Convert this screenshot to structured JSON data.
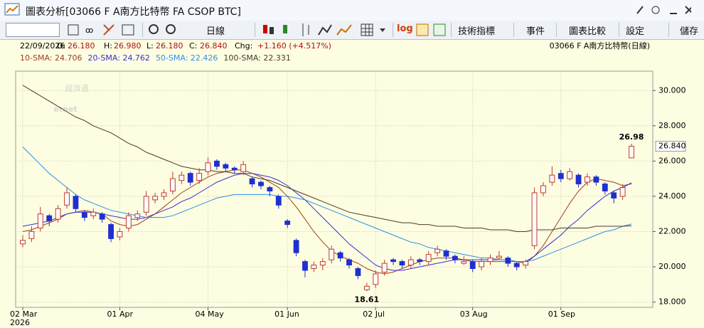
{
  "window_title": "圖表分析[03066 F A南方比特幣 FA CSOP BTC]",
  "toolbar": {
    "period": "日線",
    "log": "log",
    "indicators": "技術指標",
    "events": "事件",
    "compare": "圖表比較",
    "settings": "設定",
    "save": "儲存"
  },
  "watermark": {
    "cn": "經濟通",
    "en": "etnet"
  },
  "chart_data": {
    "type": "candlestick",
    "info": {
      "date": "22/09/2026",
      "o_label": "O:",
      "o": "26.180",
      "h_label": "H:",
      "h": "26.980",
      "l_label": "L:",
      "l": "26.180",
      "c_label": "C:",
      "c": "26.840",
      "chg_label": "Chg:",
      "chg": "+1.160 (+4.517%)",
      "symbol": "03066  F A南方比特幣(日線)"
    },
    "categories": [
      "02 Mar",
      null,
      null,
      null,
      null,
      null,
      null,
      null,
      null,
      null,
      null,
      "01 Apr",
      null,
      null,
      null,
      null,
      null,
      null,
      null,
      null,
      null,
      "04 May",
      null,
      null,
      null,
      null,
      null,
      null,
      null,
      null,
      "01 Jun",
      null,
      null,
      null,
      null,
      null,
      null,
      null,
      null,
      null,
      "02 Jul",
      null,
      null,
      null,
      null,
      null,
      null,
      null,
      null,
      null,
      null,
      "03 Aug",
      null,
      null,
      null,
      null,
      null,
      null,
      null,
      null,
      null,
      "01 Sep",
      null,
      null,
      null,
      null,
      null,
      null,
      null,
      null
    ],
    "year_label": "2026",
    "open": [
      21.3,
      21.6,
      22.2,
      22.9,
      22.7,
      23.5,
      24.0,
      23.1,
      22.9,
      23.0,
      22.4,
      21.7,
      22.2,
      22.8,
      23.1,
      23.8,
      24.0,
      24.3,
      24.9,
      25.3,
      24.9,
      25.4,
      26.0,
      25.8,
      25.6,
      25.4,
      25.0,
      24.8,
      24.5,
      24.0,
      22.6,
      21.5,
      20.3,
      19.9,
      20.1,
      20.4,
      20.8,
      20.4,
      19.9,
      18.7,
      19.0,
      19.7,
      20.4,
      20.3,
      20.1,
      20.4,
      20.3,
      20.8,
      20.9,
      20.6,
      20.2,
      20.3,
      20.0,
      20.3,
      20.5,
      20.5,
      20.2,
      20.1,
      21.2,
      24.2,
      24.8,
      25.3,
      25.0,
      25.2,
      24.8,
      25.1,
      24.7,
      24.2,
      24.0,
      26.18
    ],
    "high": [
      21.8,
      22.3,
      23.4,
      23.0,
      23.5,
      24.5,
      24.1,
      23.2,
      23.3,
      23.1,
      22.5,
      22.2,
      23.1,
      23.2,
      24.3,
      24.2,
      24.4,
      25.4,
      25.4,
      25.4,
      25.6,
      26.2,
      26.1,
      25.9,
      25.7,
      26.0,
      25.1,
      24.9,
      24.6,
      24.1,
      22.7,
      21.6,
      20.4,
      20.3,
      20.5,
      21.2,
      20.9,
      20.5,
      20.0,
      19.1,
      19.8,
      20.4,
      20.5,
      20.4,
      20.6,
      20.5,
      20.9,
      21.2,
      21.0,
      20.7,
      20.6,
      20.4,
      20.5,
      20.7,
      20.9,
      20.6,
      20.3,
      20.4,
      24.5,
      24.8,
      25.7,
      25.5,
      25.6,
      25.3,
      25.3,
      25.2,
      24.8,
      24.3,
      24.7,
      26.98
    ],
    "low": [
      21.1,
      21.4,
      22.0,
      22.3,
      22.5,
      23.3,
      23.1,
      22.6,
      22.7,
      22.5,
      21.4,
      21.5,
      22.0,
      22.6,
      22.9,
      23.6,
      23.8,
      24.1,
      24.7,
      24.6,
      24.7,
      25.2,
      25.5,
      25.4,
      25.3,
      25.2,
      24.5,
      24.4,
      24.0,
      23.3,
      22.2,
      20.6,
      19.4,
      19.7,
      19.8,
      20.2,
      20.3,
      19.9,
      19.3,
      18.61,
      18.8,
      19.5,
      20.1,
      19.9,
      19.9,
      20.1,
      20.1,
      20.6,
      20.4,
      20.2,
      20.1,
      19.7,
      19.8,
      20.1,
      20.4,
      20.0,
      19.8,
      19.9,
      21.0,
      24.0,
      24.6,
      24.8,
      24.9,
      24.5,
      24.6,
      24.6,
      24.1,
      23.6,
      23.8,
      26.18
    ],
    "close": [
      21.5,
      22.0,
      23.0,
      22.6,
      23.3,
      24.2,
      23.3,
      22.8,
      23.1,
      22.7,
      21.6,
      22.0,
      22.9,
      23.0,
      24.0,
      24.0,
      24.2,
      25.0,
      25.2,
      24.8,
      25.3,
      25.9,
      25.7,
      25.6,
      25.5,
      25.8,
      24.7,
      24.6,
      24.3,
      23.5,
      22.4,
      20.8,
      19.8,
      20.1,
      20.3,
      21.0,
      20.5,
      20.1,
      19.5,
      18.9,
      19.6,
      20.2,
      20.3,
      20.1,
      20.4,
      20.3,
      20.7,
      21.0,
      20.6,
      20.4,
      20.3,
      19.9,
      20.3,
      20.5,
      20.6,
      20.2,
      20.0,
      20.3,
      24.2,
      24.6,
      25.2,
      25.0,
      25.4,
      24.7,
      25.1,
      24.8,
      24.3,
      23.9,
      24.5,
      26.84
    ],
    "up_color": "#c0392b",
    "down_color": "#1f2fd0",
    "series": [
      {
        "name": "10-SMA: 24.706",
        "color": "#a0401c",
        "values": [
          22.0,
          22.1,
          22.3,
          22.5,
          22.7,
          23.0,
          23.1,
          23.2,
          23.1,
          23.0,
          22.6,
          22.4,
          22.3,
          22.4,
          22.7,
          23.0,
          23.4,
          23.8,
          24.2,
          24.5,
          24.8,
          25.1,
          25.3,
          25.4,
          25.5,
          25.5,
          25.3,
          25.1,
          24.8,
          24.5,
          24.0,
          23.4,
          22.7,
          22.0,
          21.4,
          20.9,
          20.6,
          20.4,
          20.2,
          19.9,
          19.7,
          19.6,
          19.7,
          19.9,
          20.1,
          20.3,
          20.4,
          20.5,
          20.5,
          20.5,
          20.4,
          20.3,
          20.3,
          20.3,
          20.3,
          20.3,
          20.3,
          20.2,
          20.6,
          21.2,
          22.0,
          22.8,
          23.6,
          24.3,
          24.8,
          25.0,
          24.9,
          24.8,
          24.6,
          24.706
        ]
      },
      {
        "name": "20-SMA: 24.762",
        "color": "#3a2fd0",
        "values": [
          22.3,
          22.4,
          22.5,
          22.6,
          22.8,
          23.0,
          23.1,
          23.1,
          23.1,
          23.0,
          22.9,
          22.8,
          22.7,
          22.7,
          22.8,
          23.0,
          23.2,
          23.4,
          23.7,
          23.9,
          24.2,
          24.5,
          24.8,
          25.0,
          25.2,
          25.3,
          25.3,
          25.2,
          25.1,
          24.9,
          24.6,
          24.2,
          23.8,
          23.3,
          22.8,
          22.3,
          21.8,
          21.3,
          20.9,
          20.5,
          20.1,
          19.9,
          19.8,
          19.8,
          19.9,
          20.0,
          20.1,
          20.2,
          20.3,
          20.4,
          20.4,
          20.4,
          20.4,
          20.4,
          20.4,
          20.4,
          20.3,
          20.3,
          20.6,
          21.0,
          21.4,
          21.8,
          22.3,
          22.7,
          23.2,
          23.6,
          24.0,
          24.3,
          24.5,
          24.762
        ]
      },
      {
        "name": "50-SMA: 22.426",
        "color": "#2f8fe8",
        "values": [
          26.8,
          26.3,
          25.8,
          25.3,
          24.9,
          24.5,
          24.1,
          23.8,
          23.6,
          23.4,
          23.2,
          23.1,
          23.0,
          22.9,
          22.8,
          22.8,
          22.8,
          22.9,
          23.1,
          23.3,
          23.5,
          23.7,
          23.9,
          24.0,
          24.1,
          24.1,
          24.1,
          24.1,
          24.1,
          24.0,
          24.0,
          23.9,
          23.8,
          23.6,
          23.4,
          23.2,
          23.0,
          22.8,
          22.6,
          22.4,
          22.2,
          22.0,
          21.8,
          21.6,
          21.4,
          21.3,
          21.1,
          21.0,
          20.9,
          20.8,
          20.7,
          20.6,
          20.5,
          20.5,
          20.4,
          20.4,
          20.3,
          20.3,
          20.4,
          20.6,
          20.8,
          21.0,
          21.2,
          21.4,
          21.6,
          21.8,
          22.0,
          22.1,
          22.3,
          22.426
        ]
      },
      {
        "name": "100-SMA: 22.331",
        "color": "#4a3a2a",
        "values": [
          30.3,
          30.0,
          29.7,
          29.4,
          29.1,
          28.8,
          28.5,
          28.3,
          28.0,
          27.8,
          27.6,
          27.3,
          27.0,
          26.8,
          26.5,
          26.3,
          26.1,
          25.9,
          25.7,
          25.6,
          25.5,
          25.5,
          25.4,
          25.4,
          25.3,
          25.3,
          25.1,
          25.0,
          24.9,
          24.7,
          24.5,
          24.3,
          24.1,
          23.9,
          23.7,
          23.5,
          23.3,
          23.1,
          23.0,
          22.9,
          22.8,
          22.7,
          22.6,
          22.5,
          22.5,
          22.4,
          22.4,
          22.3,
          22.3,
          22.3,
          22.2,
          22.2,
          22.2,
          22.1,
          22.1,
          22.1,
          22.0,
          22.0,
          22.1,
          22.1,
          22.1,
          22.2,
          22.2,
          22.2,
          22.2,
          22.3,
          22.3,
          22.3,
          22.3,
          22.331
        ]
      }
    ],
    "annotations": [
      {
        "label": "18.61",
        "value": 18.61
      },
      {
        "label": "26.98",
        "value": 26.98
      }
    ],
    "last_price": {
      "value": 26.84,
      "label": "26.840"
    },
    "ylim": [
      17.7,
      31.1
    ],
    "yticks": [
      {
        "value": 18,
        "label": "18.000"
      },
      {
        "value": 20,
        "label": "20.000"
      },
      {
        "value": 22,
        "label": "22.000"
      },
      {
        "value": 24,
        "label": "24.000"
      },
      {
        "value": 26,
        "label": "26.000"
      },
      {
        "value": 28,
        "label": "28.000"
      },
      {
        "value": 30,
        "label": "30.000"
      }
    ],
    "grid": true
  }
}
